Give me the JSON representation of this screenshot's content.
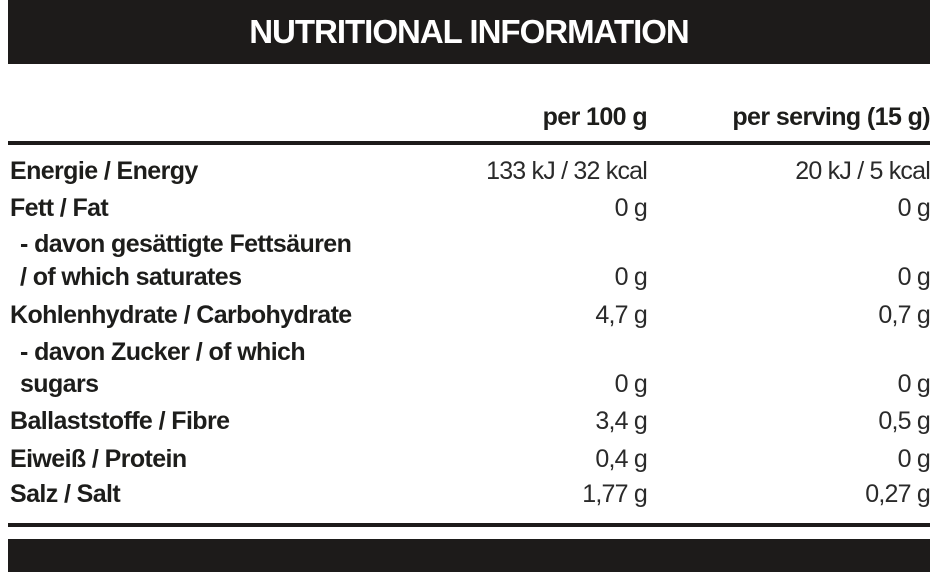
{
  "title": "NUTRITIONAL INFORMATION",
  "columns": {
    "per100": "per 100 g",
    "serving": "per serving (15 g)"
  },
  "rows": [
    {
      "label": "Energie / Energy",
      "per100": "133 kJ / 32 kcal",
      "serving": "20 kJ / 5 kcal"
    },
    {
      "label": "Fett / Fat",
      "per100": "0 g",
      "serving": "0 g"
    },
    {
      "label": "- davon gesättigte Fettsäuren",
      "label2": "/ of which saturates",
      "per100": "0 g",
      "serving": "0 g"
    },
    {
      "label": "Kohlenhydrate / Carbohydrate",
      "per100": "4,7 g",
      "serving": "0,7 g"
    },
    {
      "label": "- davon Zucker / of which",
      "label2": "sugars",
      "per100": "0 g",
      "serving": "0 g"
    },
    {
      "label": "Ballaststoffe / Fibre",
      "per100": "3,4 g",
      "serving": "0,5 g"
    },
    {
      "label": "Eiweiß / Protein",
      "per100": "0,4 g",
      "serving": "0 g"
    },
    {
      "label": "Salz / Salt",
      "per100": "1,77 g",
      "serving": "0,27 g"
    }
  ]
}
